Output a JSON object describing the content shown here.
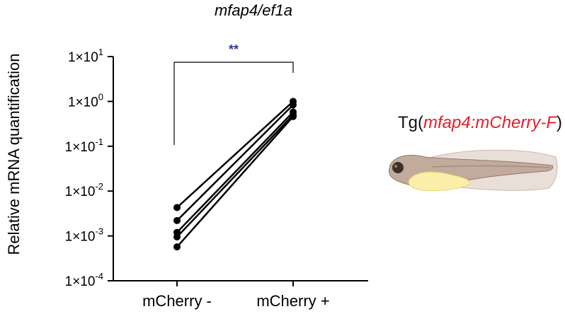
{
  "chart_data": {
    "type": "scatter",
    "title": "mfap4/ef1a",
    "ylabel": "Relative mRNA quantification",
    "xlabel": "",
    "yscale": "log",
    "ylim": [
      0.0001,
      10
    ],
    "yticks": [
      {
        "value": 10,
        "mantissa": "1×10",
        "exp": "1"
      },
      {
        "value": 1,
        "mantissa": "1×10",
        "exp": "0"
      },
      {
        "value": 0.1,
        "mantissa": "1×10",
        "exp": "-1"
      },
      {
        "value": 0.01,
        "mantissa": "1×10",
        "exp": "-2"
      },
      {
        "value": 0.001,
        "mantissa": "1×10",
        "exp": "-3"
      },
      {
        "value": 0.0001,
        "mantissa": "1×10",
        "exp": "-4"
      }
    ],
    "categories": [
      "mCherry -",
      "mCherry +"
    ],
    "paired": [
      [
        0.0043,
        1.0
      ],
      [
        0.0022,
        0.84
      ],
      [
        0.0012,
        0.58
      ],
      [
        0.00095,
        0.5
      ],
      [
        0.00057,
        0.46
      ]
    ],
    "significance": {
      "label": "**",
      "color": "#2e3c8f",
      "from": 0,
      "to": 1
    },
    "point_color": "#000000",
    "grid": false
  },
  "inset": {
    "prefix": "Tg(",
    "allele": "mfap4:mCherry-F",
    "suffix": ")"
  }
}
